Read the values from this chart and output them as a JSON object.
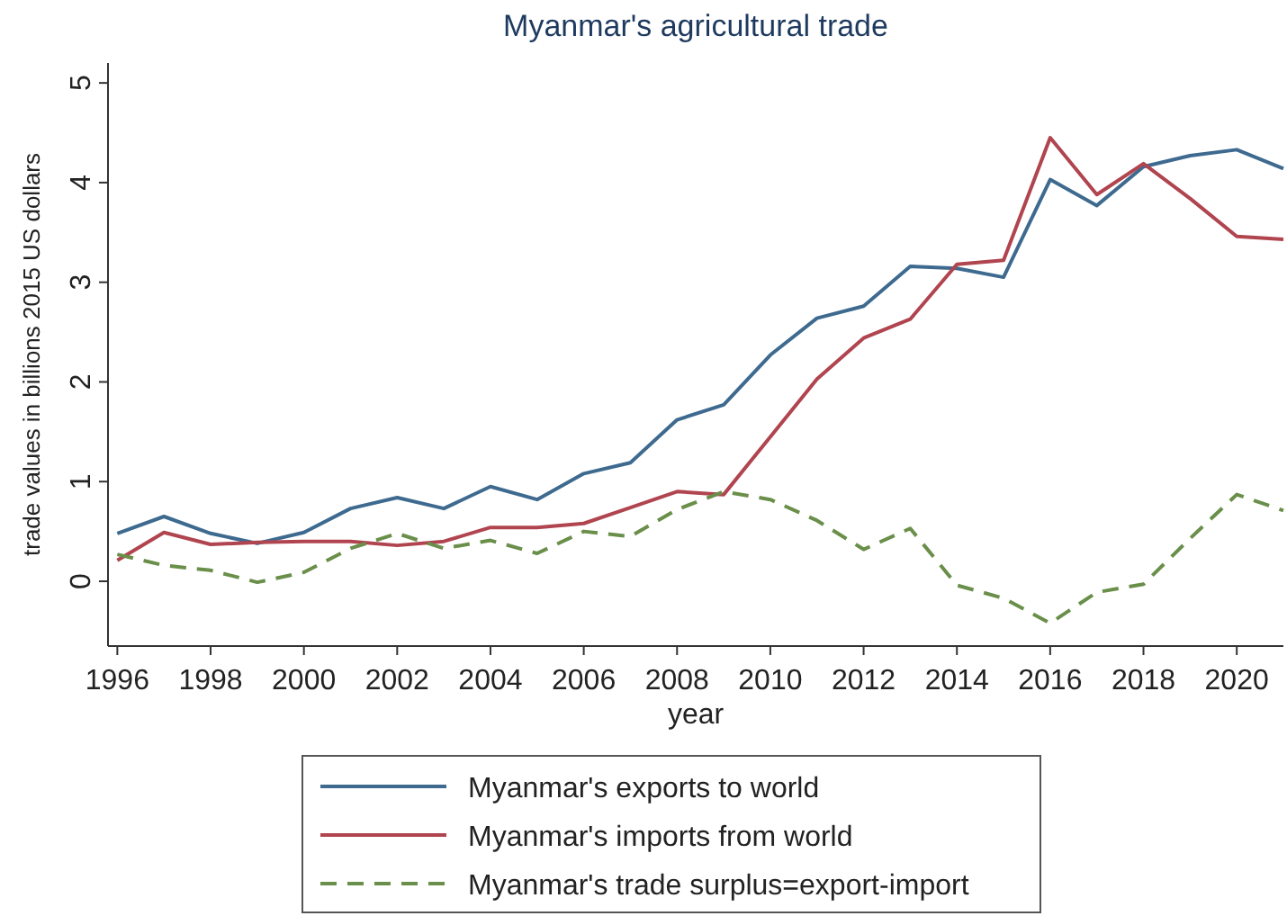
{
  "chart_data": {
    "type": "line",
    "title": "Myanmar's agricultural trade",
    "xlabel": "year",
    "ylabel": "trade values in billions 2015 US dollars",
    "x": [
      1996,
      1997,
      1998,
      1999,
      2000,
      2001,
      2002,
      2003,
      2004,
      2005,
      2006,
      2007,
      2008,
      2009,
      2010,
      2011,
      2012,
      2013,
      2014,
      2015,
      2016,
      2017,
      2018,
      2019,
      2020,
      2021
    ],
    "xlim": [
      1995.8,
      2021
    ],
    "xticks": [
      1996,
      1998,
      2000,
      2002,
      2004,
      2006,
      2008,
      2010,
      2012,
      2014,
      2016,
      2018,
      2020
    ],
    "ylim": [
      -0.65,
      5.2
    ],
    "yticks": [
      0,
      1,
      2,
      3,
      4,
      5
    ],
    "grid": false,
    "legend": "bottom",
    "series": [
      {
        "name": "Myanmar's exports to world",
        "color": "#3e6a8f",
        "line_style": "solid",
        "values": [
          0.48,
          0.65,
          0.48,
          0.38,
          0.49,
          0.73,
          0.84,
          0.73,
          0.95,
          0.82,
          1.08,
          1.19,
          1.62,
          1.77,
          2.27,
          2.64,
          2.76,
          3.16,
          3.14,
          3.05,
          4.03,
          3.77,
          4.16,
          4.27,
          4.33,
          4.14
        ]
      },
      {
        "name": "Myanmar's imports from world",
        "color": "#b0444f",
        "line_style": "solid",
        "values": [
          0.21,
          0.49,
          0.37,
          0.39,
          0.4,
          0.4,
          0.36,
          0.4,
          0.54,
          0.54,
          0.58,
          0.74,
          0.9,
          0.87,
          1.45,
          2.03,
          2.44,
          2.63,
          3.18,
          3.22,
          4.45,
          3.88,
          4.19,
          3.84,
          3.46,
          3.43
        ]
      },
      {
        "name": "Myanmar's trade surplus=export-import",
        "color": "#6a8f4a",
        "line_style": "dashed",
        "values": [
          0.27,
          0.16,
          0.11,
          -0.01,
          0.09,
          0.33,
          0.48,
          0.33,
          0.41,
          0.28,
          0.5,
          0.45,
          0.72,
          0.9,
          0.82,
          0.61,
          0.32,
          0.53,
          -0.04,
          -0.17,
          -0.42,
          -0.11,
          -0.03,
          0.43,
          0.87,
          0.71
        ]
      }
    ]
  }
}
